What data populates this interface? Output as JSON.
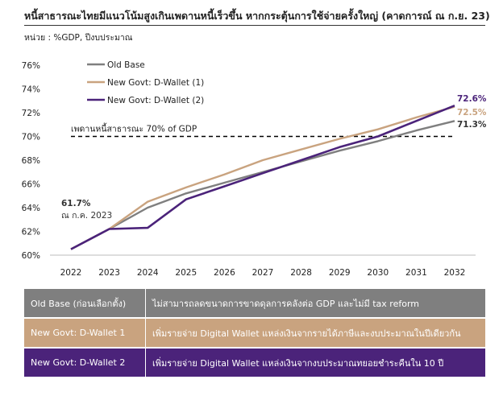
{
  "header": {
    "title": "หนี้สาธารณะไทยมีแนวโน้มสูงเกินเพดานหนี้เร็วขึ้น หากกระตุ้นการใช้จ่ายครั้งใหญ่ (คาดการณ์ ณ ก.ย. 23)",
    "unit": "หน่วย : %GDP, ปีงบประมาณ"
  },
  "chart_data": {
    "type": "line",
    "x": [
      2022,
      2023,
      2024,
      2025,
      2026,
      2027,
      2028,
      2029,
      2030,
      2031,
      2032
    ],
    "ylim": [
      60,
      76
    ],
    "yticks": [
      "60%",
      "62%",
      "64%",
      "66%",
      "68%",
      "70%",
      "72%",
      "74%",
      "76%"
    ],
    "series": [
      {
        "name": "Old Base",
        "color": "#7f7f7f",
        "values": [
          60.5,
          62.2,
          64.0,
          65.2,
          66.1,
          67.0,
          67.9,
          68.8,
          69.6,
          70.5,
          71.3
        ]
      },
      {
        "name": "New Govt: D-Wallet (1)",
        "color": "#c9a37f",
        "values": [
          60.5,
          62.2,
          64.5,
          65.7,
          66.8,
          68.0,
          68.9,
          69.8,
          70.6,
          71.6,
          72.5
        ]
      },
      {
        "name": "New Govt: D-Wallet (2)",
        "color": "#4b237a",
        "values": [
          60.5,
          62.2,
          62.3,
          64.7,
          65.8,
          66.9,
          68.0,
          69.1,
          70.0,
          71.3,
          72.6
        ]
      }
    ],
    "ceiling": {
      "value": 70,
      "label": "เพดานหนี้สาธารณะ 70% of GDP"
    },
    "annotations": [
      {
        "value_text": "61.7%",
        "sub_text": "ณ ก.ค. 2023"
      },
      {
        "value_text": "72.6%",
        "color": "#4b237a"
      },
      {
        "value_text": "72.5%",
        "color": "#c9a37f"
      },
      {
        "value_text": "71.3%",
        "color": "#333333"
      }
    ],
    "legend_placement": "top-left"
  },
  "table": {
    "rows": [
      {
        "label": "Old Base (ก่อนเลือกตั้ง)",
        "desc": "ไม่สามารถลดขนาดการขาดดุลการคลังต่อ GDP และไม่มี tax reform",
        "color": "#7f7f7f"
      },
      {
        "label": "New Govt: D-Wallet 1",
        "desc": "เพิ่มรายจ่าย Digital Wallet แหล่งเงินจากรายได้ภาษีและงบประมาณในปีเดียวกัน",
        "color": "#c9a37f"
      },
      {
        "label": "New Govt: D-Wallet 2",
        "desc": "เพิ่มรายจ่าย Digital Wallet แหล่งเงินจากงบประมาณทยอยชำระคืนใน 10 ปี",
        "color": "#4b237a"
      }
    ]
  }
}
